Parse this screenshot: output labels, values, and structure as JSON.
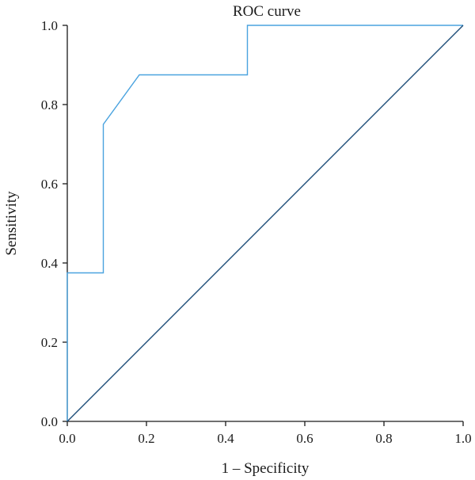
{
  "chart_data": {
    "type": "line",
    "title": "ROC curve",
    "xlabel": "1 – Specificity",
    "ylabel": "Sensitivity",
    "xlim": [
      0,
      1
    ],
    "ylim": [
      0,
      1
    ],
    "xticks": [
      "0.0",
      "0.2",
      "0.4",
      "0.6",
      "0.8",
      "1.0"
    ],
    "yticks": [
      "0.0",
      "0.2",
      "0.4",
      "0.6",
      "0.8",
      "1.0"
    ],
    "grid": false,
    "series": [
      {
        "color": "#4aa3df",
        "x": [
          0.0,
          0.0,
          0.091,
          0.091,
          0.182,
          0.455,
          0.455,
          1.0
        ],
        "y": [
          0.0,
          0.375,
          0.375,
          0.75,
          0.875,
          0.875,
          1.0,
          1.0
        ]
      },
      {
        "color": "#1f4e79",
        "x": [
          0.0,
          1.0
        ],
        "y": [
          0.0,
          1.0
        ]
      }
    ]
  }
}
